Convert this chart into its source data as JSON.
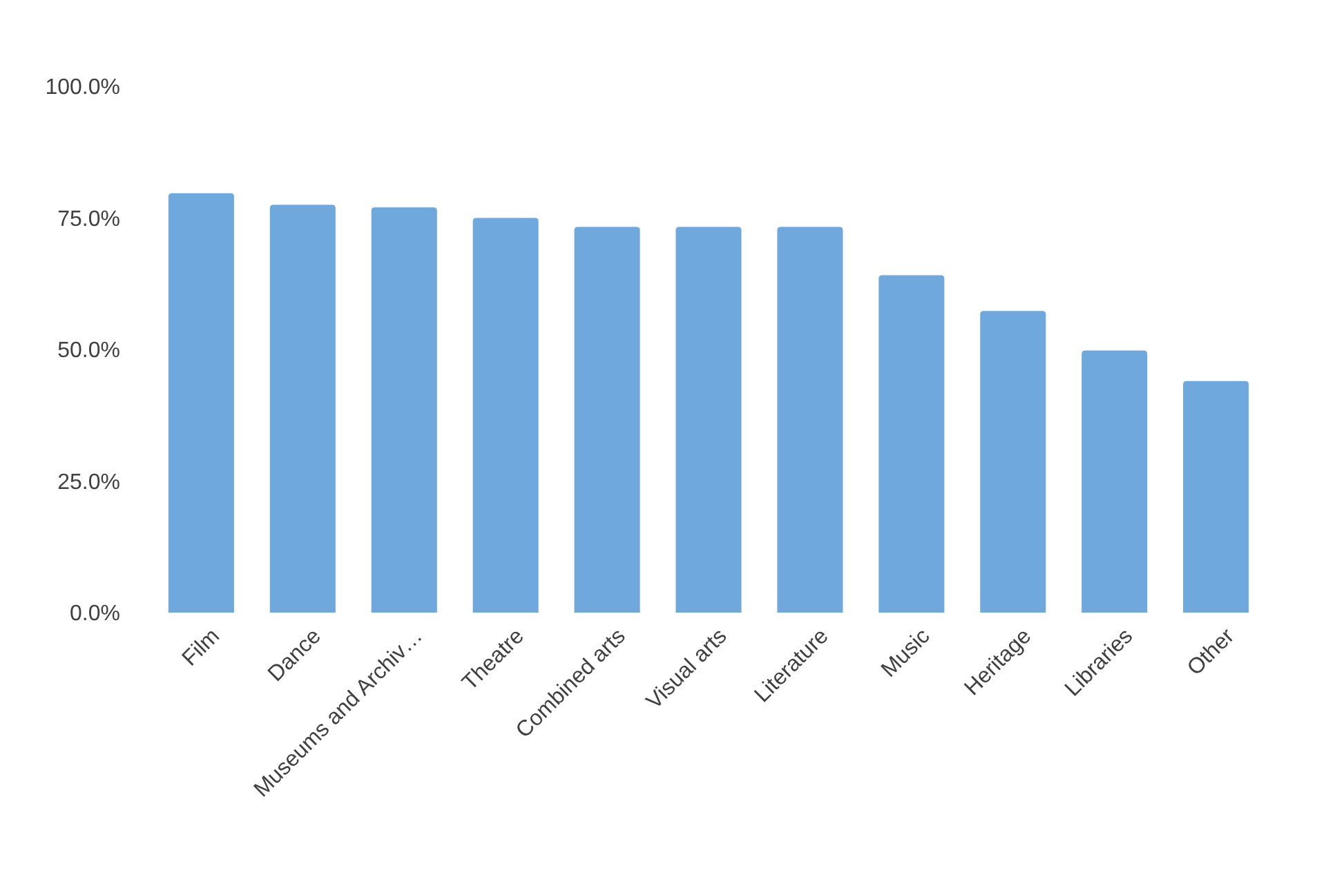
{
  "chart_data": {
    "type": "bar",
    "categories": [
      "Film",
      "Dance",
      "Museums and Archiv…",
      "Theatre",
      "Combined arts",
      "Visual arts",
      "Literature",
      "Music",
      "Heritage",
      "Libraries",
      "Other"
    ],
    "values": [
      79.7,
      77.5,
      77.0,
      75.0,
      73.3,
      73.3,
      73.3,
      64.1,
      57.3,
      49.8,
      44.0
    ],
    "color": "#6fa8dc",
    "ylim": [
      0,
      100
    ],
    "yticks": [
      {
        "value": 0,
        "label": "0.0%"
      },
      {
        "value": 25,
        "label": "25.0%"
      },
      {
        "value": 50,
        "label": "50.0%"
      },
      {
        "value": 75,
        "label": "75.0%"
      },
      {
        "value": 100,
        "label": "100.0%"
      }
    ],
    "grid": false
  }
}
